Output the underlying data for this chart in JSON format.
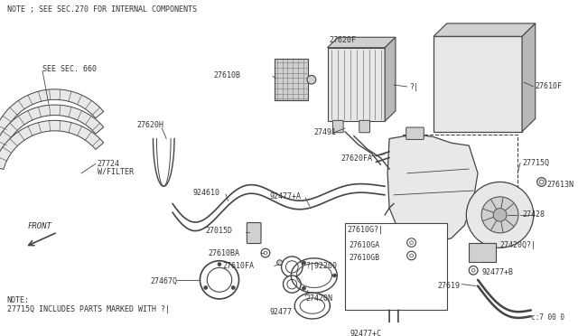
{
  "bg_color": "#ffffff",
  "line_color": "#444444",
  "text_color": "#333333",
  "fill_light": "#e8e8e8",
  "fill_mid": "#d0d0d0",
  "fill_dark": "#b8b8b8",
  "title_note1": "NOTE ; SEE SEC.270 FOR INTERNAL COMPONENTS",
  "title_note2": "NOTE:\n27715Q INCLUDES PARTS MARKED WITH ?|",
  "part_ref": "c:7 00 0",
  "figw": 6.4,
  "figh": 3.72,
  "dpi": 100
}
